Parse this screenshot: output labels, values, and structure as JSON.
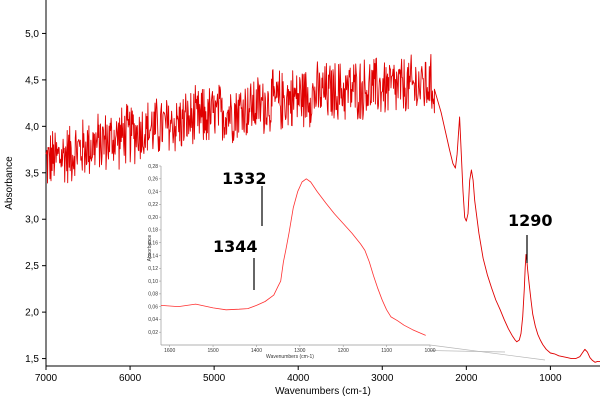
{
  "chart_data": [
    {
      "type": "line",
      "title": "",
      "xlabel": "Wavenumbers (cm-1)",
      "ylabel": "Absorbance",
      "xlim": [
        7000,
        410
      ],
      "ylim": [
        1.42,
        5.36
      ],
      "x_reversed": true,
      "grid": false,
      "line_color": "#e00000",
      "x_ticks": [
        "7000",
        "6000",
        "5000",
        "4000",
        "3000",
        "2000",
        "1000"
      ],
      "y_ticks": [
        "1,5",
        "2,0",
        "2,5",
        "3,0",
        "3,5",
        "4,0",
        "4,5",
        "5,0"
      ],
      "series": [
        {
          "name": "",
          "noisy_envelope": {
            "x": [
              7000,
              6500,
              6000,
              5500,
              5000,
              4500,
              4000,
              3500,
              3000,
              2700,
              2450,
              2380
            ],
            "y": [
              3.62,
              3.78,
              3.92,
              4.02,
              4.12,
              4.22,
              4.32,
              4.38,
              4.42,
              4.42,
              4.45,
              4.4
            ],
            "noise_amplitude": 0.38
          },
          "x": [
            2380,
            2300,
            2250,
            2200,
            2160,
            2130,
            2110,
            2080,
            2060,
            2040,
            2020,
            2000,
            1980,
            1960,
            1940,
            1920,
            1900,
            1850,
            1800,
            1750,
            1700,
            1650,
            1600,
            1550,
            1500,
            1450,
            1420,
            1400,
            1370,
            1350,
            1330,
            1310,
            1300,
            1290,
            1280,
            1270,
            1250,
            1230,
            1210,
            1180,
            1150,
            1120,
            1090,
            1050,
            1000,
            950,
            900,
            850,
            800,
            750,
            700,
            650,
            620,
            590,
            560,
            530,
            500,
            470,
            440,
            410
          ],
          "y": [
            4.4,
            4.15,
            3.95,
            3.75,
            3.6,
            3.55,
            3.7,
            4.1,
            3.7,
            3.3,
            3.02,
            2.98,
            3.06,
            3.42,
            3.53,
            3.42,
            3.2,
            2.85,
            2.58,
            2.4,
            2.26,
            2.13,
            2.03,
            1.92,
            1.82,
            1.74,
            1.7,
            1.68,
            1.7,
            1.77,
            1.95,
            2.25,
            2.48,
            2.62,
            2.55,
            2.45,
            2.28,
            2.12,
            1.98,
            1.85,
            1.76,
            1.7,
            1.65,
            1.6,
            1.56,
            1.55,
            1.53,
            1.52,
            1.51,
            1.5,
            1.5,
            1.52,
            1.56,
            1.6,
            1.57,
            1.51,
            1.48,
            1.46,
            1.47,
            1.47
          ]
        }
      ],
      "annotations": [
        {
          "text": "1290",
          "x": 1290,
          "y": 2.62
        }
      ]
    },
    {
      "type": "line",
      "title": "",
      "xlabel": "Wavenumbers (cm-1)",
      "ylabel": "Absorbance",
      "xlim": [
        1620,
        1000
      ],
      "ylim": [
        0.0,
        0.28
      ],
      "x_reversed": true,
      "grid": false,
      "line_color": "#ff3030",
      "x_ticks": [
        "1600",
        "1500",
        "1400",
        "1300",
        "1200",
        "1100",
        "1000"
      ],
      "y_ticks": [
        "0,02",
        "0,04",
        "0,06",
        "0,08",
        "0,10",
        "0,12",
        "0,14",
        "0,16",
        "0,18",
        "0,20",
        "0,22",
        "0,24",
        "0,26",
        "0,28"
      ],
      "series": [
        {
          "name": "",
          "x": [
            1620,
            1580,
            1540,
            1520,
            1500,
            1470,
            1440,
            1420,
            1400,
            1380,
            1360,
            1350,
            1344,
            1338,
            1332,
            1325,
            1315,
            1305,
            1295,
            1285,
            1275,
            1260,
            1240,
            1220,
            1200,
            1180,
            1160,
            1150,
            1140,
            1130,
            1120,
            1110,
            1100,
            1090,
            1075,
            1060,
            1040,
            1020,
            1010
          ],
          "y": [
            0.062,
            0.06,
            0.064,
            0.061,
            0.058,
            0.055,
            0.056,
            0.057,
            0.062,
            0.068,
            0.078,
            0.092,
            0.1,
            0.13,
            0.15,
            0.175,
            0.215,
            0.24,
            0.255,
            0.26,
            0.255,
            0.24,
            0.222,
            0.205,
            0.19,
            0.175,
            0.158,
            0.148,
            0.13,
            0.108,
            0.088,
            0.07,
            0.055,
            0.044,
            0.038,
            0.031,
            0.024,
            0.018,
            0.015
          ]
        }
      ],
      "annotations": [
        {
          "text": "1332",
          "x": 1332,
          "y": 0.15
        },
        {
          "text": "1344",
          "x": 1344,
          "y": 0.1
        }
      ]
    }
  ]
}
